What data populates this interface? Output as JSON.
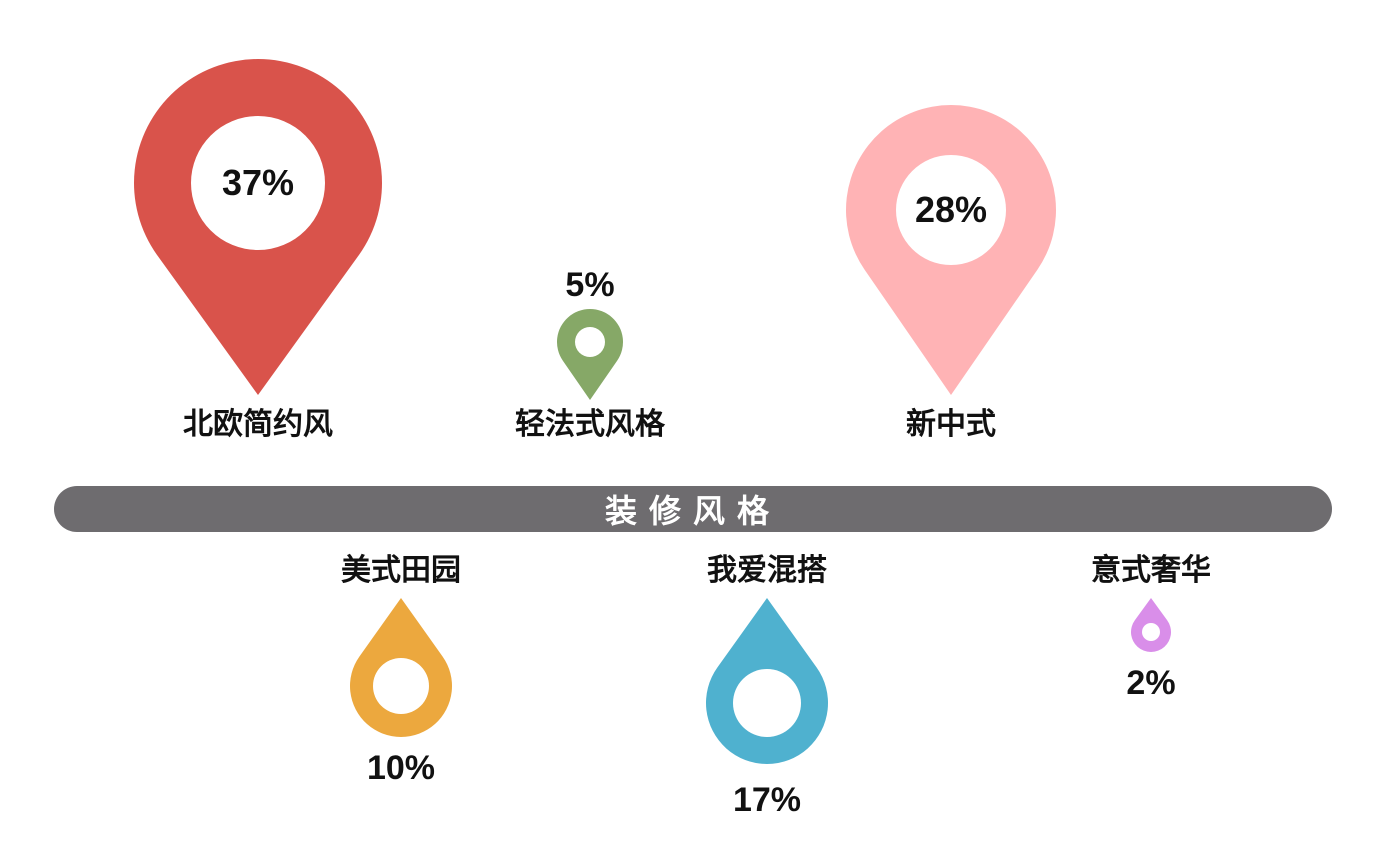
{
  "chart_data": {
    "type": "pictorial",
    "title": "装修风格",
    "categories": [
      "北欧简约风",
      "轻法式风格",
      "新中式",
      "美式田园",
      "我爱混搭",
      "意式奢华"
    ],
    "values": [
      37,
      5,
      28,
      10,
      17,
      2
    ],
    "value_labels": [
      "37%",
      "5%",
      "28%",
      "10%",
      "17%",
      "2%"
    ],
    "colors": [
      "#d9534b",
      "#86a867",
      "#ffb3b5",
      "#eca83e",
      "#4fb1cf",
      "#d98ee9"
    ],
    "unit": "%"
  }
}
